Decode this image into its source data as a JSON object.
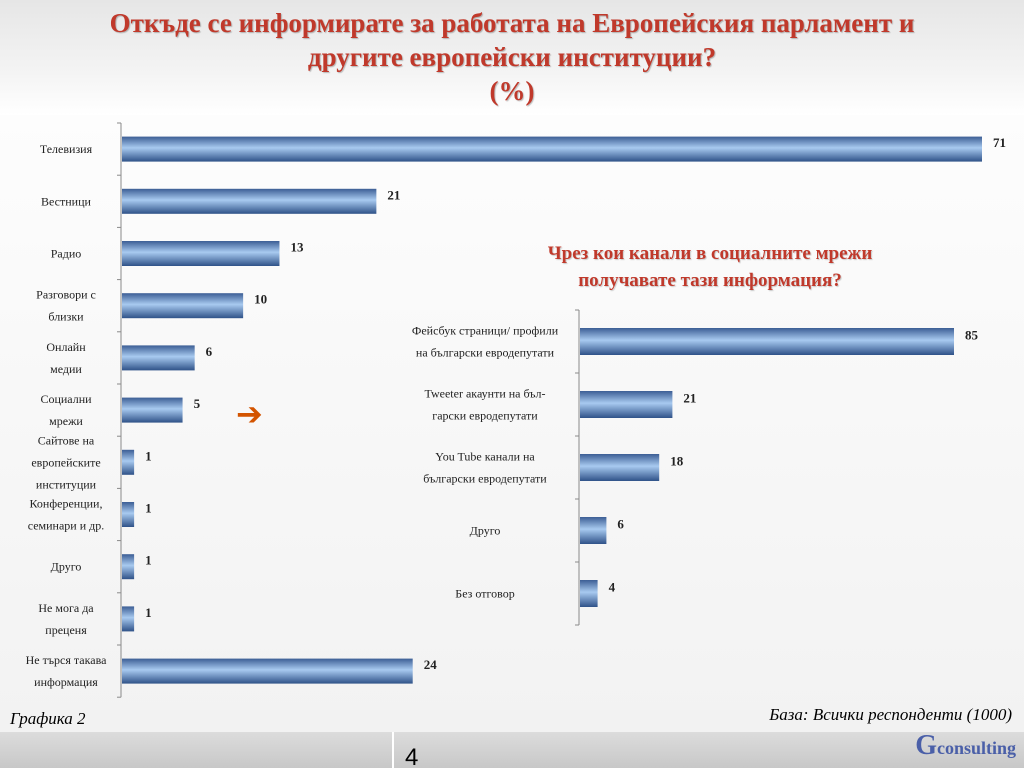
{
  "title": {
    "line1": "Откъде се информирате за работата на Европейския парламент и",
    "line2": "другите европейски институции?",
    "line3": "(%)"
  },
  "sub_title": {
    "line1": "Чрез кои канали в социалните мрежи",
    "line2": "получавате тази информация?"
  },
  "graph_label": "Графика 2",
  "base_label": "База:  Всички респонденти (1000)",
  "page_number": "4",
  "brand": {
    "initial": "G",
    "rest": "consulting"
  },
  "arrow_icon": "arrow-right-icon",
  "colors": {
    "title": "#c0392b",
    "bar_mid": "#9cc0ea",
    "bar_edge": "#2f5288",
    "brand": "#4a5fa8"
  },
  "chart_data": [
    {
      "type": "bar",
      "orientation": "horizontal",
      "categories": [
        [
          "Телевизия"
        ],
        [
          "Вестници"
        ],
        [
          "Радио"
        ],
        [
          "Разговори с",
          "близки"
        ],
        [
          "Онлайн",
          "медии"
        ],
        [
          "Социални",
          "мрежи"
        ],
        [
          "Сайтове на",
          "европейските",
          "институции"
        ],
        [
          "Конференции,",
          "семинари и др."
        ],
        [
          "Друго"
        ],
        [
          "Не мога да",
          "преценя"
        ],
        [
          "Не търся такава",
          "информация"
        ]
      ],
      "values": [
        71,
        21,
        13,
        10,
        6,
        5,
        1,
        1,
        1,
        1,
        24
      ],
      "xlim": [
        0,
        71
      ]
    },
    {
      "type": "bar",
      "orientation": "horizontal",
      "categories": [
        [
          "Фейсбук страници/ профили",
          "на български евродепутати"
        ],
        [
          "Tweeter акаунти на бъл-",
          "гарски евродепутати"
        ],
        [
          "You Tube канали на",
          "български евродепутати"
        ],
        [
          "Друго"
        ],
        [
          "Без отговор"
        ]
      ],
      "values": [
        85,
        21,
        18,
        6,
        4
      ],
      "xlim": [
        0,
        85
      ]
    }
  ]
}
